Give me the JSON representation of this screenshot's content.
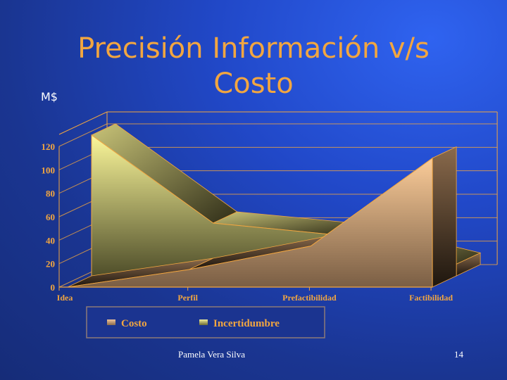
{
  "slide": {
    "title": "Precisión Información v/s Costo",
    "unit_label": "M$",
    "author": "Pamela Vera Silva",
    "page_number": "14"
  },
  "chart_data": {
    "type": "area",
    "three_d": true,
    "categories": [
      "Idea",
      "Perfil",
      "Prefactibilidad",
      "Factibilidad"
    ],
    "series": [
      {
        "name": "Costo",
        "values": [
          0,
          15,
          35,
          110
        ],
        "color": "#e8b98c"
      },
      {
        "name": "Incertidumbre",
        "values": [
          120,
          45,
          35,
          10
        ],
        "color": "#e6e48a"
      }
    ],
    "ylim": [
      0,
      120
    ],
    "yticks": [
      0,
      20,
      40,
      60,
      80,
      100,
      120
    ],
    "grid": true,
    "legend": "bottom",
    "axis_color": "#f2a640"
  }
}
